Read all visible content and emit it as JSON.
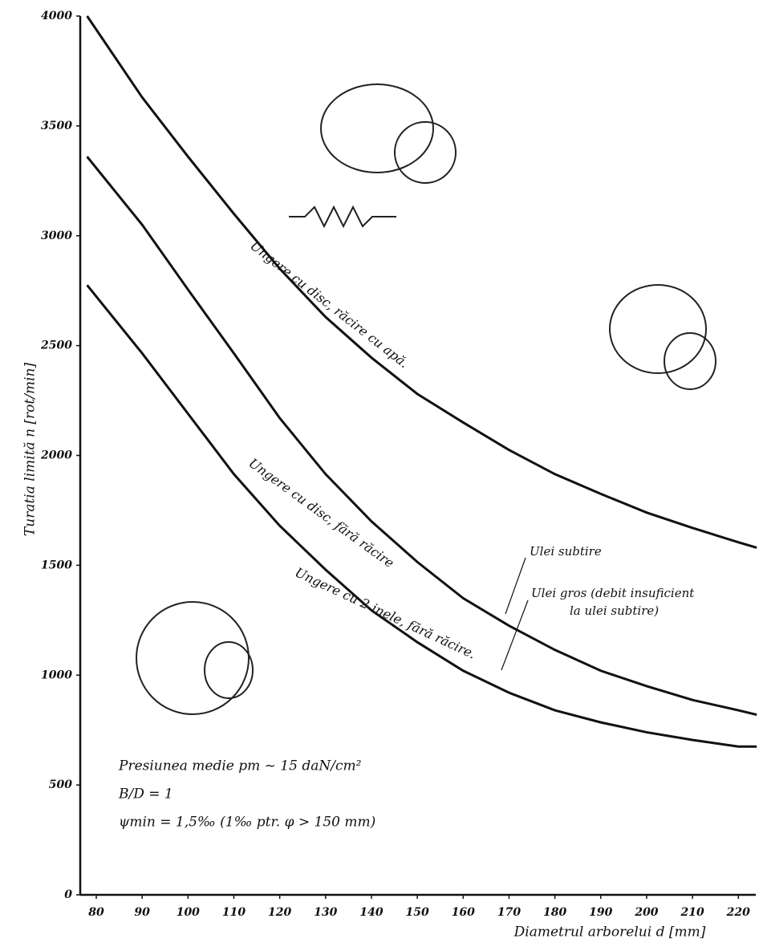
{
  "chart_data": {
    "type": "line",
    "x_label": "Diametrul arborelui d [mm]",
    "y_label": "Turatia limită n [rot/min]",
    "x": [
      78,
      90,
      100,
      110,
      120,
      130,
      140,
      150,
      160,
      170,
      180,
      190,
      200,
      210,
      220,
      224
    ],
    "series": [
      {
        "name": "Ungere cu disc, răcire cu apă.",
        "color": "#111111",
        "values": [
          4000,
          3630,
          3360,
          3100,
          2850,
          2630,
          2445,
          2280,
          2150,
          2025,
          1915,
          1825,
          1740,
          1670,
          1605,
          1580
        ]
      },
      {
        "name": "Ungere cu disc, fără răcire",
        "color": "#111111",
        "values": [
          3360,
          3050,
          2755,
          2465,
          2170,
          1915,
          1700,
          1515,
          1350,
          1225,
          1115,
          1020,
          950,
          887,
          840,
          820
        ]
      },
      {
        "name": "Ungere cu 2 inele, fără răcire.",
        "color": "#111111",
        "values": [
          2775,
          2465,
          2190,
          1915,
          1680,
          1480,
          1295,
          1150,
          1020,
          920,
          840,
          785,
          740,
          705,
          675,
          675
        ]
      }
    ],
    "xlim": [
      76.5,
      223.8
    ],
    "ylim": [
      0,
      4000
    ],
    "xticks": [
      80,
      90,
      100,
      110,
      120,
      130,
      140,
      150,
      160,
      170,
      180,
      190,
      200,
      210,
      220
    ],
    "yticks": [
      0,
      500,
      1000,
      1500,
      2000,
      2500,
      3000,
      3500,
      4000
    ],
    "annotations": [
      "Ulei subtire",
      "Ulei gros (debit insuficient",
      "la ulei subtire)"
    ],
    "notes": [
      "Presiunea medie pm ~ 15 daN/cm²",
      "B/D = 1",
      "ψmin = 1,5‰ (1‰ ptr. φ > 150 mm)"
    ]
  }
}
